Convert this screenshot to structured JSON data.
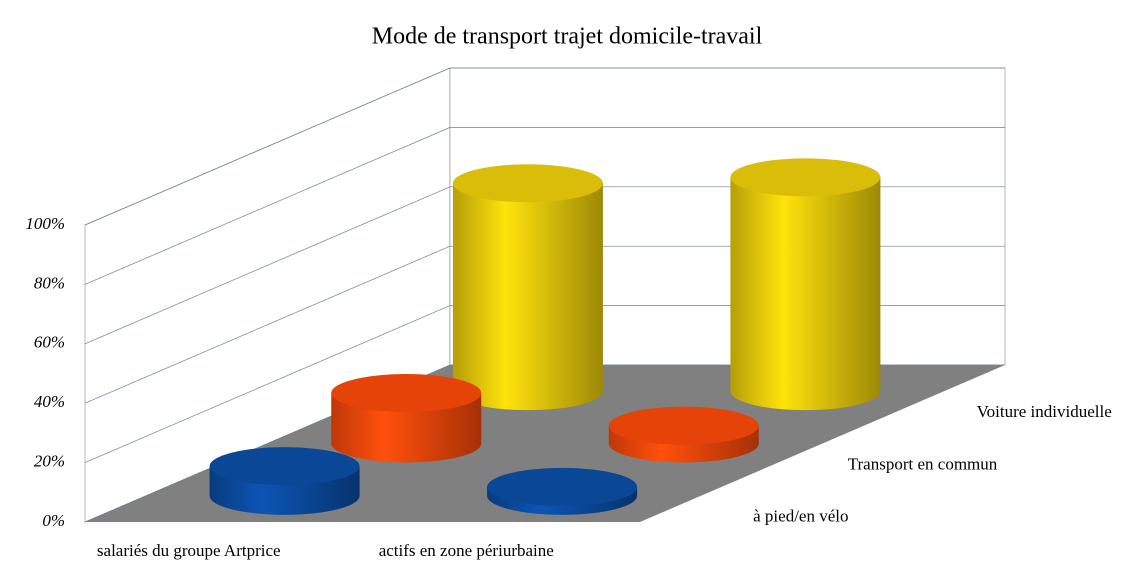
{
  "chart_data": {
    "type": "bar3d",
    "title": "Mode de transport trajet domicile-travail",
    "categories": [
      "salariés du groupe Artprice",
      "actifs en zone périurbaine"
    ],
    "series": [
      {
        "name": "à pied/en vélo",
        "color": "#0b4fa8",
        "values": [
          10,
          3
        ]
      },
      {
        "name": "Transport en commun",
        "color": "#ff4a0a",
        "values": [
          17,
          6
        ]
      },
      {
        "name": "Voiture individuelle",
        "color": "#f2d20a",
        "values": [
          70,
          72
        ]
      }
    ],
    "ylim": [
      0,
      100
    ],
    "yticks": [
      {
        "value": 0,
        "label": "0%"
      },
      {
        "value": 20,
        "label": "20%"
      },
      {
        "value": 40,
        "label": "40%"
      },
      {
        "value": 60,
        "label": "60%"
      },
      {
        "value": 80,
        "label": "80%"
      },
      {
        "value": 100,
        "label": "100%"
      }
    ],
    "grid": true
  }
}
